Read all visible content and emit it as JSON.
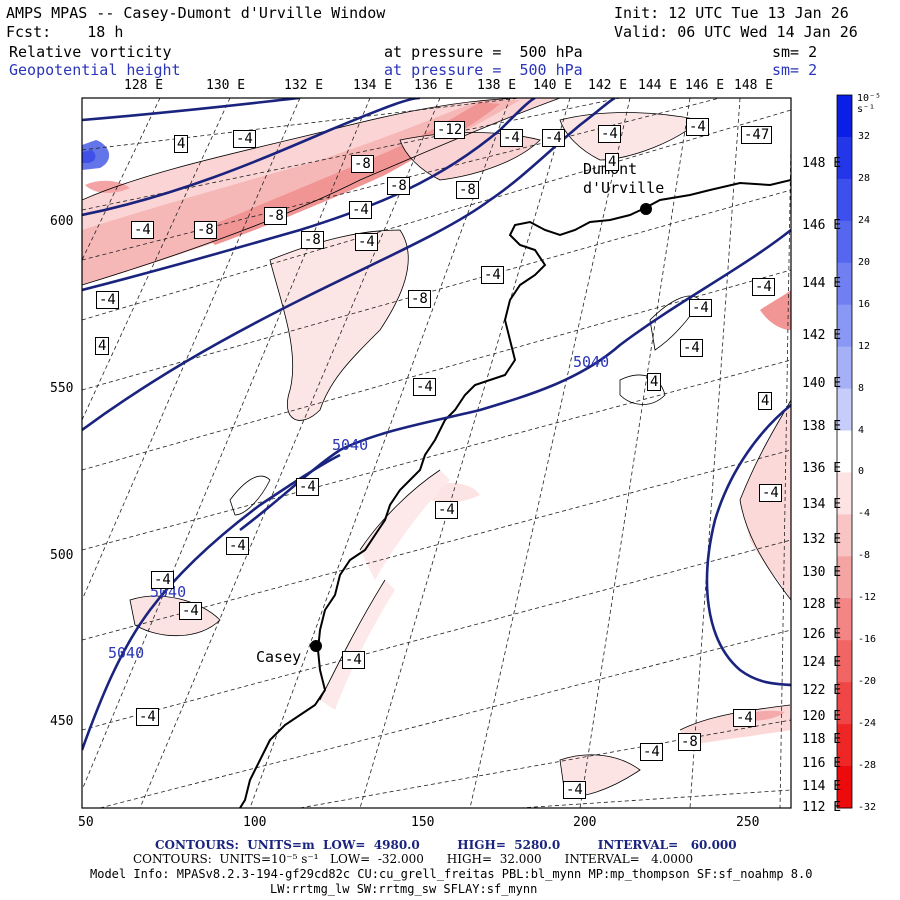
{
  "header": {
    "title": "AMPS MPAS -- Casey-Dumont d'Urville Window",
    "init": "Init: 12 UTC Tue 13 Jan 26",
    "fcst": "Fcst:    18 h",
    "valid": "Valid: 06 UTC Wed 14 Jan 26"
  },
  "fields": {
    "f1_name": "Relative vorticity",
    "f1_level": "at pressure =  500 hPa",
    "f1_sm": "sm= 2",
    "f2_name": "Geopotential height",
    "f2_level": "at pressure =  500 hPa",
    "f2_sm": "sm= 2"
  },
  "lon_top_labels": [
    "128 E",
    "130 E",
    "132 E",
    "134 E",
    "136 E",
    "138 E",
    "140 E",
    "142 E",
    "144 E",
    "146 E",
    "148 E"
  ],
  "lon_right_labels": [
    "148 E",
    "146 E",
    "144 E",
    "142 E",
    "140 E",
    "138 E",
    "136 E",
    "134 E",
    "132 E",
    "130 E",
    "128 E",
    "126 E",
    "124 E",
    "122 E",
    "120 E",
    "118 E",
    "116 E",
    "114 E",
    "112 E"
  ],
  "x_axis_ticks": [
    "50",
    "100",
    "150",
    "200",
    "250"
  ],
  "y_axis_ticks": [
    "600",
    "550",
    "500",
    "450"
  ],
  "stations": [
    {
      "name": "Dumont\nd'Urville"
    },
    {
      "name": "Casey"
    }
  ],
  "height_labels": [
    "5040",
    "5040",
    "5040",
    "5040"
  ],
  "vorticity_labels": [
    "-12",
    "-4",
    "-4",
    "-4",
    "-4",
    "-4",
    "-47",
    "4",
    "4",
    "-8",
    "-8",
    "-8",
    "-8",
    "-4",
    "-4",
    "-8",
    "-4",
    "-8",
    "-4",
    "-4",
    "-8",
    "-4",
    "-4",
    "-4",
    "4",
    "-4",
    "4",
    "4",
    "-4",
    "-4",
    "-4",
    "-4",
    "-4",
    "-4",
    "-4",
    "-4",
    "-4",
    "-8",
    "-4",
    "-4",
    "-4",
    "-4",
    "-4"
  ],
  "colorbar": {
    "unit": "10⁻⁵ s⁻¹",
    "labels": [
      "32",
      "28",
      "24",
      "20",
      "16",
      "12",
      "8",
      "4",
      "0",
      "-4",
      "-8",
      "-12",
      "-16",
      "-20",
      "-24",
      "-28",
      "-32"
    ],
    "colors": [
      "#0a1ee6",
      "#2436ea",
      "#3d4fed",
      "#5667ef",
      "#7080f2",
      "#8a98f5",
      "#a5b0f7",
      "#c6cdfa",
      "#ffffff",
      "#fde3e3",
      "#f9c4c4",
      "#f5a4a4",
      "#f38585",
      "#f26565",
      "#f04646",
      "#ee2626",
      "#ec0a0a"
    ]
  },
  "footer": {
    "line1": "CONTOURS:  UNITS=m  LOW=  4980.0         HIGH=  5280.0         INTERVAL=   60.000",
    "line2": "CONTOURS:  UNITS=10⁻⁵ s⁻¹   LOW=  -32.000      HIGH=  32.000      INTERVAL=   4.0000",
    "line3": "Model Info: MPASv8.2.3-194-gf29cd82c CU:cu_grell_freitas PBL:bl_mynn MP:mp_thompson SF:sf_noahmp 8.0",
    "line4": "LW:rrtmg_lw SW:rrtmg_sw SFLAY:sf_mynn"
  }
}
